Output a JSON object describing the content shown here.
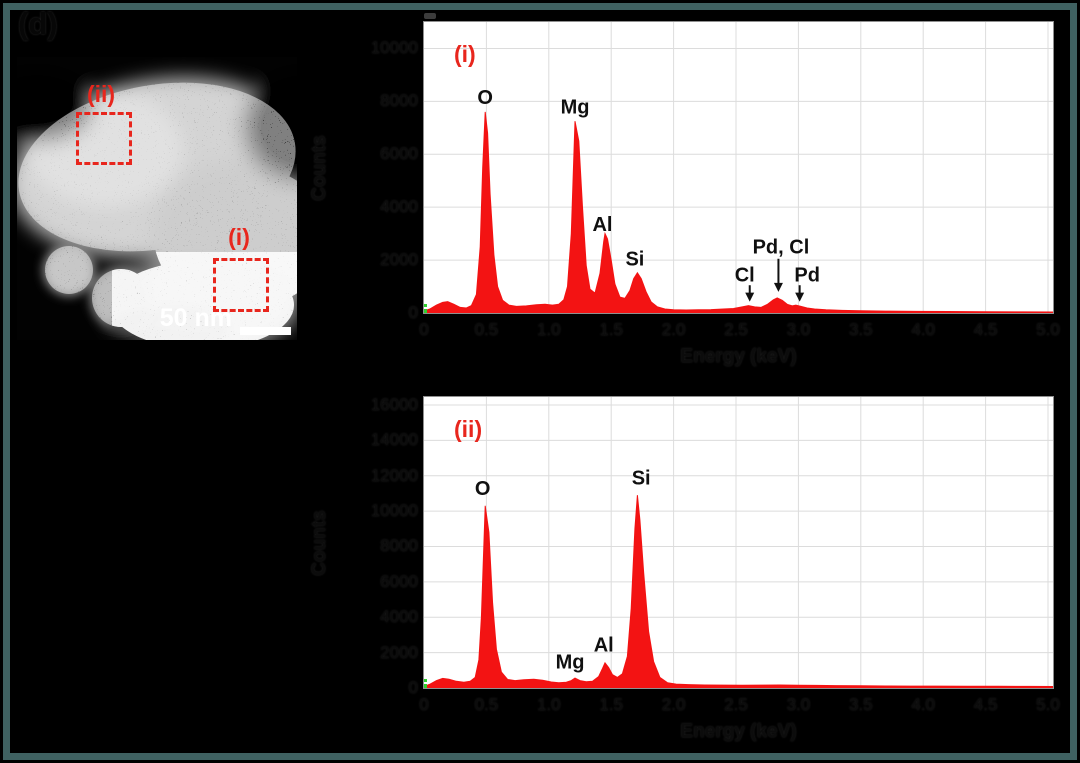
{
  "figure": {
    "panel_label": "(d)",
    "frame_color": "#3f6161",
    "background": "#000000"
  },
  "micrograph": {
    "scale_bar_label": "50 nm",
    "region_ii_label": "(ii)",
    "region_i_label": "(i)",
    "accent_color": "#e8261d"
  },
  "chart_data": [
    {
      "type": "area",
      "title": "(i)",
      "xlabel": "Energy (keV)",
      "ylabel": "Counts",
      "xlim": [
        0,
        5.04
      ],
      "ylim": [
        0,
        11000
      ],
      "grid": true,
      "legend": "none",
      "series_color": "#f31313",
      "xticks": [
        [
          0,
          "0"
        ],
        [
          0.5,
          "0.5"
        ],
        [
          1,
          "1.0"
        ],
        [
          1.5,
          "1.5"
        ],
        [
          2,
          "2.0"
        ],
        [
          2.5,
          "2.5"
        ],
        [
          3,
          "3.0"
        ],
        [
          3.5,
          "3.5"
        ],
        [
          4,
          "4.0"
        ],
        [
          4.5,
          "4.5"
        ],
        [
          5,
          "5.0"
        ]
      ],
      "yticks": [
        [
          0,
          "0"
        ],
        [
          2000,
          "2000"
        ],
        [
          4000,
          "4000"
        ],
        [
          6000,
          "6000"
        ],
        [
          8000,
          "8000"
        ],
        [
          10000,
          "10000"
        ]
      ],
      "points": [
        [
          0,
          80
        ],
        [
          0.05,
          160
        ],
        [
          0.1,
          300
        ],
        [
          0.15,
          400
        ],
        [
          0.19,
          430
        ],
        [
          0.24,
          330
        ],
        [
          0.29,
          210
        ],
        [
          0.34,
          190
        ],
        [
          0.38,
          280
        ],
        [
          0.42,
          700
        ],
        [
          0.45,
          2500
        ],
        [
          0.47,
          5500
        ],
        [
          0.49,
          7600
        ],
        [
          0.51,
          6800
        ],
        [
          0.53,
          4500
        ],
        [
          0.56,
          2200
        ],
        [
          0.59,
          1000
        ],
        [
          0.63,
          480
        ],
        [
          0.68,
          300
        ],
        [
          0.74,
          250
        ],
        [
          0.82,
          270
        ],
        [
          0.9,
          310
        ],
        [
          0.97,
          330
        ],
        [
          1.03,
          300
        ],
        [
          1.08,
          330
        ],
        [
          1.12,
          500
        ],
        [
          1.15,
          1000
        ],
        [
          1.18,
          3000
        ],
        [
          1.21,
          7250
        ],
        [
          1.24,
          6500
        ],
        [
          1.27,
          4000
        ],
        [
          1.3,
          1800
        ],
        [
          1.33,
          900
        ],
        [
          1.37,
          750
        ],
        [
          1.41,
          1500
        ],
        [
          1.44,
          2700
        ],
        [
          1.45,
          3000
        ],
        [
          1.47,
          2800
        ],
        [
          1.5,
          2000
        ],
        [
          1.53,
          1100
        ],
        [
          1.57,
          600
        ],
        [
          1.61,
          550
        ],
        [
          1.65,
          850
        ],
        [
          1.68,
          1300
        ],
        [
          1.71,
          1520
        ],
        [
          1.74,
          1300
        ],
        [
          1.78,
          800
        ],
        [
          1.82,
          420
        ],
        [
          1.87,
          230
        ],
        [
          1.93,
          150
        ],
        [
          2,
          120
        ],
        [
          2.1,
          115
        ],
        [
          2.2,
          125
        ],
        [
          2.3,
          130
        ],
        [
          2.4,
          150
        ],
        [
          2.48,
          170
        ],
        [
          2.55,
          230
        ],
        [
          2.6,
          280
        ],
        [
          2.65,
          230
        ],
        [
          2.7,
          210
        ],
        [
          2.75,
          320
        ],
        [
          2.8,
          500
        ],
        [
          2.83,
          570
        ],
        [
          2.87,
          480
        ],
        [
          2.91,
          330
        ],
        [
          2.95,
          270
        ],
        [
          2.98,
          300
        ],
        [
          3.02,
          250
        ],
        [
          3.07,
          190
        ],
        [
          3.13,
          150
        ],
        [
          3.22,
          120
        ],
        [
          3.35,
          100
        ],
        [
          3.5,
          85
        ],
        [
          3.7,
          70
        ],
        [
          3.95,
          60
        ],
        [
          4.2,
          55
        ],
        [
          4.5,
          48
        ],
        [
          4.8,
          42
        ],
        [
          5.04,
          38
        ]
      ],
      "peak_labels": [
        [
          "O",
          0.49,
          7900
        ],
        [
          "Mg",
          1.21,
          7550
        ],
        [
          "Al",
          1.43,
          3100
        ],
        [
          "Si",
          1.69,
          1800
        ],
        [
          "Cl",
          2.57,
          1200
        ],
        [
          "Pd, Cl",
          2.86,
          2250
        ],
        [
          "Pd",
          3.07,
          1200
        ]
      ],
      "arrows": [
        [
          2.61,
          1050,
          430
        ],
        [
          2.84,
          2050,
          800
        ],
        [
          3.01,
          1050,
          430
        ]
      ]
    },
    {
      "type": "area",
      "title": "(ii)",
      "xlabel": "Energy (keV)",
      "ylabel": "Counts",
      "xlim": [
        0,
        5.04
      ],
      "ylim": [
        0,
        16450
      ],
      "grid": true,
      "legend": "none",
      "series_color": "#f31313",
      "xticks": [
        [
          0,
          "0"
        ],
        [
          0.5,
          "0.5"
        ],
        [
          1,
          "1.0"
        ],
        [
          1.5,
          "1.5"
        ],
        [
          2,
          "2.0"
        ],
        [
          2.5,
          "2.5"
        ],
        [
          3,
          "3.0"
        ],
        [
          3.5,
          "3.5"
        ],
        [
          4,
          "4.0"
        ],
        [
          4.5,
          "4.5"
        ],
        [
          5,
          "5.0"
        ]
      ],
      "yticks": [
        [
          0,
          "0"
        ],
        [
          2000,
          "2000"
        ],
        [
          4000,
          "4000"
        ],
        [
          6000,
          "6000"
        ],
        [
          8000,
          "8000"
        ],
        [
          10000,
          "10000"
        ],
        [
          12000,
          "12000"
        ],
        [
          14000,
          "14000"
        ],
        [
          16000,
          "16000"
        ]
      ],
      "points": [
        [
          0,
          90
        ],
        [
          0.05,
          220
        ],
        [
          0.1,
          420
        ],
        [
          0.15,
          540
        ],
        [
          0.2,
          500
        ],
        [
          0.26,
          380
        ],
        [
          0.32,
          330
        ],
        [
          0.37,
          380
        ],
        [
          0.41,
          600
        ],
        [
          0.44,
          1600
        ],
        [
          0.46,
          4000
        ],
        [
          0.49,
          10300
        ],
        [
          0.52,
          8800
        ],
        [
          0.55,
          4800
        ],
        [
          0.58,
          2200
        ],
        [
          0.62,
          900
        ],
        [
          0.67,
          480
        ],
        [
          0.73,
          420
        ],
        [
          0.8,
          470
        ],
        [
          0.88,
          500
        ],
        [
          0.95,
          440
        ],
        [
          1.02,
          340
        ],
        [
          1.08,
          300
        ],
        [
          1.14,
          330
        ],
        [
          1.18,
          420
        ],
        [
          1.21,
          560
        ],
        [
          1.25,
          420
        ],
        [
          1.3,
          350
        ],
        [
          1.35,
          380
        ],
        [
          1.4,
          650
        ],
        [
          1.43,
          1100
        ],
        [
          1.45,
          1420
        ],
        [
          1.48,
          1150
        ],
        [
          1.51,
          750
        ],
        [
          1.55,
          600
        ],
        [
          1.59,
          800
        ],
        [
          1.63,
          1800
        ],
        [
          1.66,
          4500
        ],
        [
          1.69,
          9000
        ],
        [
          1.71,
          10900
        ],
        [
          1.73,
          9500
        ],
        [
          1.76,
          6500
        ],
        [
          1.8,
          3200
        ],
        [
          1.84,
          1500
        ],
        [
          1.89,
          600
        ],
        [
          1.95,
          300
        ],
        [
          2.02,
          220
        ],
        [
          2.12,
          190
        ],
        [
          2.25,
          170
        ],
        [
          2.4,
          165
        ],
        [
          2.55,
          160
        ],
        [
          2.7,
          165
        ],
        [
          2.85,
          170
        ],
        [
          3,
          155
        ],
        [
          3.15,
          145
        ],
        [
          3.3,
          135
        ],
        [
          3.5,
          125
        ],
        [
          3.7,
          115
        ],
        [
          3.9,
          110
        ],
        [
          4.1,
          105
        ],
        [
          4.35,
          100
        ],
        [
          4.6,
          95
        ],
        [
          4.85,
          90
        ],
        [
          5.04,
          85
        ]
      ],
      "peak_labels": [
        [
          "O",
          0.47,
          10900
        ],
        [
          "Mg",
          1.17,
          1100
        ],
        [
          "Al",
          1.44,
          2050
        ],
        [
          "Si",
          1.74,
          11500
        ]
      ],
      "arrows": []
    }
  ]
}
